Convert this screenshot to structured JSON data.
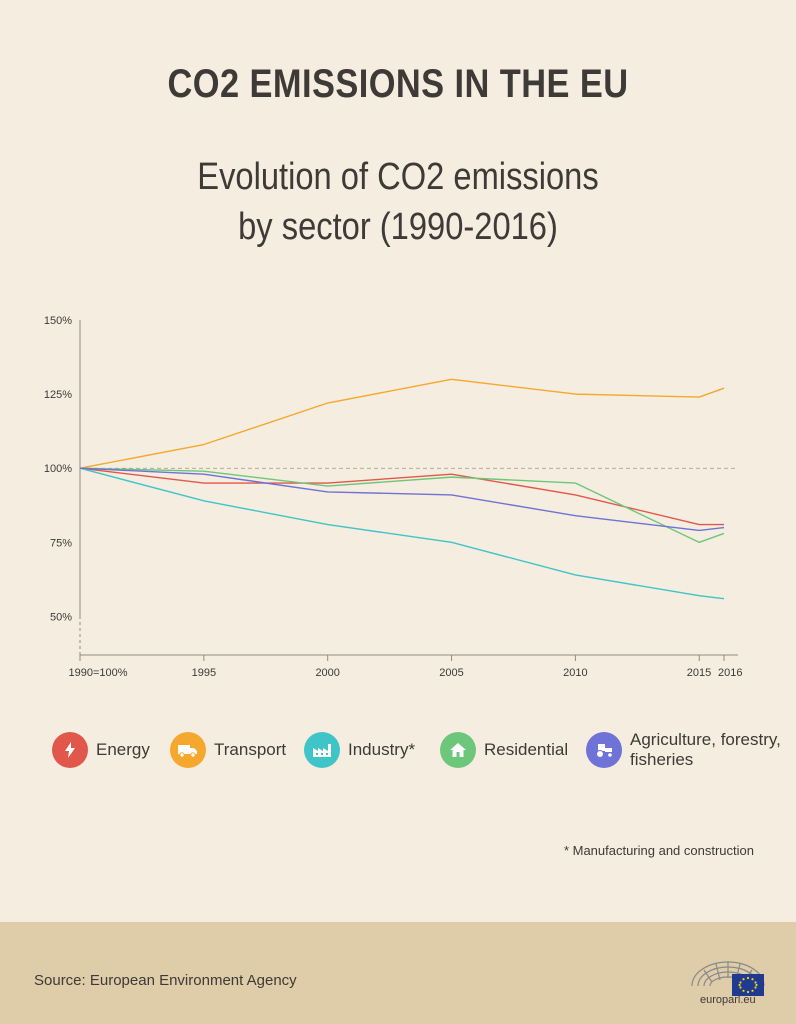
{
  "header": {
    "title": "CO2 EMISSIONS IN THE EU",
    "subtitle_line1": "Evolution of CO2 emissions",
    "subtitle_line2": "by sector (1990-2016)"
  },
  "chart_data": {
    "type": "line",
    "title": "Evolution of CO2 emissions by sector (1990-2016)",
    "xlabel": "",
    "ylabel": "",
    "x": [
      1990,
      1995,
      2000,
      2005,
      2010,
      2015,
      2016
    ],
    "x_tick_labels": [
      "1990=100%",
      "1995",
      "2000",
      "2005",
      "2010",
      "2015",
      "2016"
    ],
    "y_ticks": [
      50,
      75,
      100,
      125,
      150
    ],
    "y_tick_labels": [
      "50%",
      "75%",
      "100%",
      "125%",
      "150%"
    ],
    "ylim": [
      37,
      150
    ],
    "reference_line": 100,
    "grid": false,
    "series": [
      {
        "name": "Energy",
        "color": "#e2574c",
        "values": [
          100,
          95,
          95,
          98,
          91,
          81,
          81
        ]
      },
      {
        "name": "Transport",
        "color": "#f5a82d",
        "values": [
          100,
          108,
          122,
          130,
          125,
          124,
          127
        ]
      },
      {
        "name": "Industry*",
        "color": "#3fc4c8",
        "values": [
          100,
          89,
          81,
          75,
          64,
          57,
          56
        ]
      },
      {
        "name": "Residential",
        "color": "#6dc77a",
        "values": [
          100,
          99,
          94,
          97,
          95,
          75,
          78
        ]
      },
      {
        "name": "Agriculture, forestry, fisheries",
        "color": "#6f72d6",
        "values": [
          100,
          98,
          92,
          91,
          84,
          79,
          80
        ]
      }
    ]
  },
  "legend": {
    "energy": "Energy",
    "transport": "Transport",
    "industry": "Industry*",
    "residential": "Residential",
    "agriculture_line1": "Agriculture, forestry,",
    "agriculture_line2": "fisheries"
  },
  "icons": {
    "energy": "lightning-bolt-icon",
    "transport": "truck-icon",
    "industry": "factory-icon",
    "residential": "house-icon",
    "agriculture": "tractor-icon"
  },
  "footnote": "* Manufacturing and construction",
  "footer": {
    "source": "Source: European Environment Agency",
    "logo_text": "europarl.eu"
  }
}
